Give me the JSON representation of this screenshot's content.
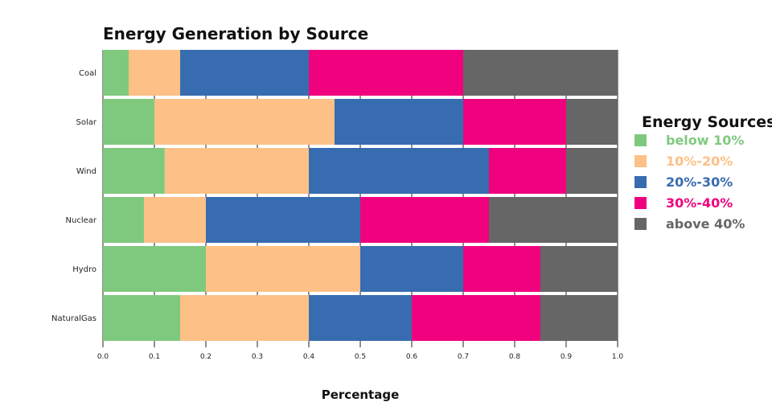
{
  "chart_data": {
    "type": "bar",
    "orientation": "horizontal",
    "stacked": true,
    "title": "Energy Generation by Source",
    "xlabel": "Percentage",
    "ylabel": "",
    "xlim": [
      0,
      1
    ],
    "x_ticks": [
      "0.0",
      "0.1",
      "0.2",
      "0.3",
      "0.4",
      "0.5",
      "0.6",
      "0.7",
      "0.8",
      "0.9",
      "1.0"
    ],
    "grid": true,
    "legend_position": "right",
    "legend_title": "Energy Sources",
    "categories": [
      "Coal",
      "Solar",
      "Wind",
      "Nuclear",
      "Hydro",
      "NaturalGas"
    ],
    "series": [
      {
        "name": "below 10%",
        "color": "#7fc97f",
        "values": [
          0.05,
          0.1,
          0.12,
          0.08,
          0.2,
          0.15
        ]
      },
      {
        "name": "10%-20%",
        "color": "#fdc086",
        "values": [
          0.1,
          0.35,
          0.28,
          0.12,
          0.3,
          0.25
        ]
      },
      {
        "name": "20%-30%",
        "color": "#386cb0",
        "values": [
          0.25,
          0.25,
          0.35,
          0.3,
          0.2,
          0.2
        ]
      },
      {
        "name": "30%-40%",
        "color": "#f0027f",
        "values": [
          0.3,
          0.2,
          0.15,
          0.25,
          0.15,
          0.25
        ]
      },
      {
        "name": "above 40%",
        "color": "#666666",
        "values": [
          0.3,
          0.1,
          0.1,
          0.25,
          0.15,
          0.15
        ]
      }
    ]
  }
}
